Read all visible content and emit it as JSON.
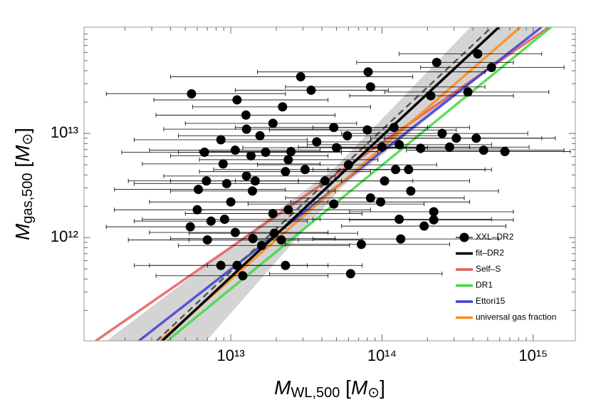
{
  "chart_data": {
    "type": "scatter",
    "xscale": "log",
    "yscale": "log",
    "xlim": [
      1070000000000.0,
      1900000000000000.0
    ],
    "ylim": [
      102000000000.0,
      105000000000000.0
    ],
    "xticks": [
      {
        "value": 10000000000000.0,
        "label": "10¹³"
      },
      {
        "value": 100000000000000.0,
        "label": "10¹⁴"
      },
      {
        "value": 1000000000000000.0,
        "label": "10¹⁵"
      }
    ],
    "yticks": [
      {
        "value": 1000000000000.0,
        "label": "10¹²"
      },
      {
        "value": 10000000000000.0,
        "label": "10¹³"
      }
    ],
    "xminor": [
      2000000000000.0,
      3000000000000.0,
      4000000000000.0,
      5000000000000.0,
      6000000000000.0,
      7000000000000.0,
      8000000000000.0,
      9000000000000.0,
      20000000000000.0,
      30000000000000.0,
      40000000000000.0,
      50000000000000.0,
      60000000000000.0,
      70000000000000.0,
      80000000000000.0,
      90000000000000.0,
      200000000000000.0,
      300000000000000.0,
      400000000000000.0,
      500000000000000.0,
      600000000000000.0,
      700000000000000.0,
      800000000000000.0,
      900000000000000.0
    ],
    "yminor": [
      200000000000.0,
      300000000000.0,
      400000000000.0,
      500000000000.0,
      600000000000.0,
      700000000000.0,
      800000000000.0,
      900000000000.0,
      2000000000000.0,
      3000000000000.0,
      4000000000000.0,
      5000000000000.0,
      6000000000000.0,
      7000000000000.0,
      8000000000000.0,
      9000000000000.0,
      20000000000000.0,
      30000000000000.0,
      40000000000000.0,
      50000000000000.0,
      60000000000000.0,
      70000000000000.0,
      80000000000000.0,
      90000000000000.0
    ],
    "xlabel": [
      "M",
      "WL,500",
      " [",
      "M",
      "⊙",
      "]"
    ],
    "ylabel": [
      "M",
      "gas,500",
      " [",
      "M",
      "⊙",
      "]"
    ],
    "legend": "lower right",
    "band": {
      "color": "#b8b8b8",
      "upper": {
        "x": [
          1510000000000.0,
          48900000000000.0,
          385000000000000.0
        ],
        "y": [
          102000000000.0,
          4690000000000.0,
          105000000000000.0
        ]
      },
      "lower": {
        "x": [
          6900000000000.0,
          54400000000000.0,
          1140000000000000.0
        ],
        "y": [
          102000000000.0,
          3060000000000.0,
          105000000000000.0
        ]
      }
    },
    "series": [
      {
        "name": "XXL–DR2",
        "kind": "points",
        "color": "#000000",
        "x": [
          5500000000000.0,
          11000000000000.0,
          29000000000000.0,
          34000000000000.0,
          81000000000000.0,
          84000000000000.0,
          230000000000000.0,
          430000000000000.0,
          530000000000000.0,
          370000000000000.0,
          210000000000000.0,
          12600000000000.0,
          22000000000000.0,
          19000000000000.0,
          12700000000000.0,
          15600000000000.0,
          48000000000000.0,
          59000000000000.0,
          80000000000000.0,
          120000000000000.0,
          130000000000000.0,
          250000000000000.0,
          310000000000000.0,
          420000000000000.0,
          470000000000000.0,
          180000000000000.0,
          6700000000000.0,
          8600000000000.0,
          10700000000000.0,
          13600000000000.0,
          17000000000000.0,
          25000000000000.0,
          37000000000000.0,
          50000000000000.0,
          100000000000000.0,
          24000000000000.0,
          31000000000000.0,
          23000000000000.0,
          8900000000000.0,
          6900000000000.0,
          6100000000000.0,
          9400000000000.0,
          12700000000000.0,
          14500000000000.0,
          42000000000000.0,
          60000000000000.0,
          104000000000000.0,
          123000000000000.0,
          150000000000000.0,
          84000000000000.0,
          98000000000000.0,
          130000000000000.0,
          220000000000000.0,
          6000000000000.0,
          10000000000000.0,
          13900000000000.0,
          19000000000000.0,
          24000000000000.0,
          48000000000000.0,
          5400000000000.0,
          7400000000000.0,
          9100000000000.0,
          7000000000000.0,
          10700000000000.0,
          14000000000000.0,
          19400000000000.0,
          21600000000000.0,
          16000000000000.0,
          8600000000000.0,
          11000000000000.0,
          12000000000000.0,
          23000000000000.0,
          62000000000000.0,
          73000000000000.0,
          133000000000000.0,
          190000000000000.0,
          220000000000000.0,
          650000000000000.0,
          155000000000000.0,
          280000000000000.0
        ],
        "y": [
          24000000000000.0,
          21000000000000.0,
          35000000000000.0,
          26000000000000.0,
          39000000000000.0,
          28000000000000.0,
          48000000000000.0,
          58000000000000.0,
          43000000000000.0,
          25000000000000.0,
          23000000000000.0,
          15000000000000.0,
          18000000000000.0,
          12500000000000.0,
          11000000000000.0,
          9500000000000.0,
          11400000000000.0,
          9500000000000.0,
          10800000000000.0,
          11400000000000.0,
          7800000000000.0,
          10000000000000.0,
          9000000000000.0,
          9000000000000.0,
          6900000000000.0,
          7200000000000.0,
          6600000000000.0,
          8700000000000.0,
          6900000000000.0,
          6100000000000.0,
          6600000000000.0,
          6700000000000.0,
          8300000000000.0,
          7300000000000.0,
          7400000000000.0,
          5600000000000.0,
          4500000000000.0,
          4300000000000.0,
          5100000000000.0,
          3500000000000.0,
          2900000000000.0,
          3300000000000.0,
          3900000000000.0,
          3500000000000.0,
          3500000000000.0,
          5000000000000.0,
          3500000000000.0,
          4500000000000.0,
          4500000000000.0,
          2400000000000.0,
          2200000000000.0,
          1500000000000.0,
          1770000000000.0,
          1850000000000.0,
          2200000000000.0,
          2800000000000.0,
          1700000000000.0,
          1850000000000.0,
          2100000000000.0,
          1270000000000.0,
          1440000000000.0,
          1500000000000.0,
          950000000000.0,
          1120000000000.0,
          980000000000.0,
          1100000000000.0,
          950000000000.0,
          840000000000.0,
          540000000000.0,
          540000000000.0,
          430000000000.0,
          540000000000.0,
          450000000000.0,
          860000000000.0,
          970000000000.0,
          1290000000000.0,
          1480000000000.0,
          6700000000000.0,
          2800000000000.0,
          7400000000000.0
        ],
        "x_lo": [
          1500000000000.0,
          3100000000000.0,
          4000000000000.0,
          10700000000000.0,
          15000000000000.0,
          23000000000000.0,
          68000000000000.0,
          130000000000000.0,
          180000000000000.0,
          104000000000000.0,
          61000000000000.0,
          3200000000000.0,
          5600000000000.0,
          5000000000000.0,
          3600000000000.0,
          4500000000000.0,
          10700000000000.0,
          16500000000000.0,
          18000000000000.0,
          35000000000000.0,
          32000000000000.0,
          54000000000000.0,
          84000000000000.0,
          104000000000000.0,
          145000000000000.0,
          54000000000000.0,
          1900000000000.0,
          2300000000000.0,
          2900000000000.0,
          4000000000000.0,
          4500000000000.0,
          6200000000000.0,
          8600000000000.0,
          12000000000000.0,
          28000000000000.0,
          6200000000000.0,
          7700000000000.0,
          6200000000000.0,
          2600000000000.0,
          2100000000000.0,
          1700000000000.0,
          2300000000000.0,
          3600000000000.0,
          4000000000000.0,
          10700000000000.0,
          15000000000000.0,
          28000000000000.0,
          35000000000000.0,
          44000000000000.0,
          23000000000000.0,
          25000000000000.0,
          35000000000000.0,
          61000000000000.0,
          1700000000000.0,
          2900000000000.0,
          4000000000000.0,
          5000000000000.0,
          6200000000000.0,
          13000000000000.0,
          1500000000000.0,
          2300000000000.0,
          2600000000000.0,
          2100000000000.0,
          2900000000000.0,
          4000000000000.0,
          5300000000000.0,
          5300000000000.0,
          4500000000000.0,
          2300000000000.0,
          2900000000000.0,
          3200000000000.0,
          7000000000000.0,
          18000000000000.0,
          23000000000000.0,
          35000000000000.0,
          54000000000000.0,
          61000000000000.0,
          180000000000000.0,
          44000000000000.0,
          77000000000000.0
        ],
        "x_hi": [
          23000000000000.0,
          44000000000000.0,
          160000000000000.0,
          110000000000000.0,
          480000000000000.0,
          480000000000000.0,
          740000000000000.0,
          1140000000000000.0,
          1600000000000000.0,
          1270000000000000.0,
          740000000000000.0,
          49000000000000.0,
          84000000000000.0,
          68000000000000.0,
          49000000000000.0,
          61000000000000.0,
          200000000000000.0,
          250000000000000.0,
          310000000000000.0,
          380000000000000.0,
          530000000000000.0,
          920000000000000.0,
          1140000000000000.0,
          1400000000000000.0,
          1600000000000000.0,
          660000000000000.0,
          25000000000000.0,
          32000000000000.0,
          39000000000000.0,
          44000000000000.0,
          54000000000000.0,
          94000000000000.0,
          130000000000000.0,
          200000000000000.0,
          380000000000000.0,
          94000000000000.0,
          116000000000000.0,
          84000000000000.0,
          39000000000000.0,
          28000000000000.0,
          23000000000000.0,
          39000000000000.0,
          49000000000000.0,
          54000000000000.0,
          160000000000000.0,
          230000000000000.0,
          380000000000000.0,
          480000000000000.0,
          530000000000000.0,
          350000000000000.0,
          380000000000000.0,
          530000000000000.0,
          740000000000000.0,
          23000000000000.0,
          44000000000000.0,
          49000000000000.0,
          74000000000000.0,
          84000000000000.0,
          190000000000000.0,
          23000000000000.0,
          32000000000000.0,
          39000000000000.0,
          28000000000000.0,
          44000000000000.0,
          49000000000000.0,
          69000000000000.0,
          74000000000000.0,
          61000000000000.0,
          32000000000000.0,
          44000000000000.0,
          44000000000000.0,
          74000000000000.0,
          250000000000000.0,
          280000000000000.0,
          590000000000000.0,
          660000000000000.0,
          740000000000000.0,
          1760000000000000.0,
          590000000000000.0,
          940000000000000.0
        ]
      },
      {
        "name": "fit–DR2",
        "kind": "line",
        "color": "#000000",
        "x": [
          3520000000000.0,
          594000000000000.0
        ],
        "y": [
          102000000000.0,
          105000000000000.0
        ]
      },
      {
        "name": "Self–S",
        "kind": "line",
        "color": "#e35b5b",
        "x": [
          1280000000000.0,
          1270000000000000.0
        ],
        "y": [
          102000000000.0,
          105000000000000.0
        ]
      },
      {
        "name": "DR1",
        "kind": "line",
        "color": "#3fd93f",
        "x": [
          3800000000000.0,
          1310000000000000.0
        ],
        "y": [
          102000000000.0,
          105000000000000.0
        ]
      },
      {
        "name": "Ettori15",
        "kind": "line",
        "color": "#3f3fd0",
        "x": [
          2470000000000.0,
          1140000000000000.0
        ],
        "y": [
          102000000000.0,
          105000000000000.0
        ]
      },
      {
        "name": "universal gas fraction",
        "kind": "line",
        "color": "#ff8c1a",
        "x": [
          3410000000000.0,
          822000000000000.0
        ],
        "y": [
          102000000000.0,
          105000000000000.0
        ]
      },
      {
        "kind": "line",
        "style": "dashed",
        "color": "#555555",
        "x": [
          3230000000000.0,
          532000000000000.0
        ],
        "y": [
          102000000000.0,
          105000000000000.0
        ]
      }
    ]
  }
}
